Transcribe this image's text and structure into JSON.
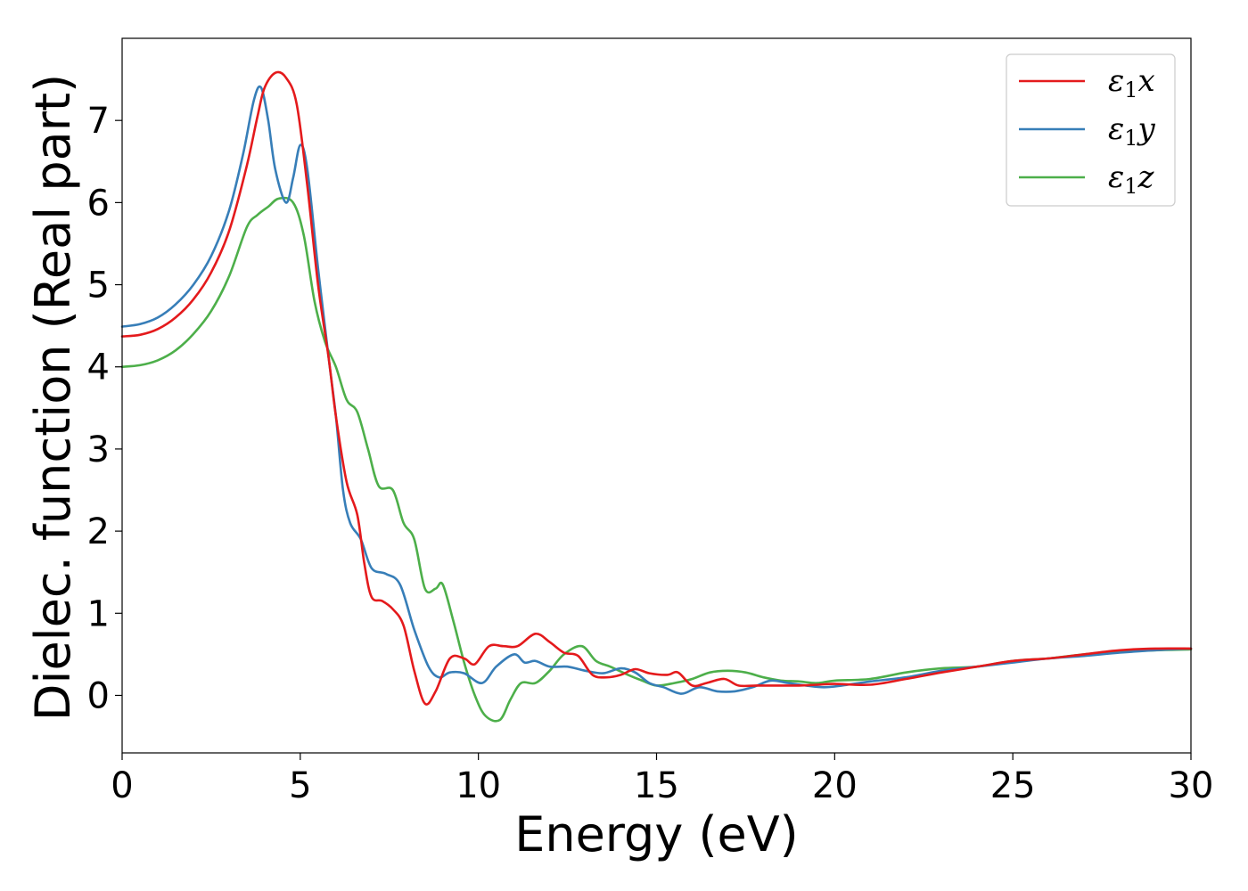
{
  "chart_data": {
    "type": "line",
    "title": "",
    "xlabel": "Energy (eV)",
    "ylabel": "Dielec. function (Real part)",
    "xlim": [
      0,
      30
    ],
    "ylim": [
      -0.7,
      8.0
    ],
    "xticks": [
      0,
      5,
      10,
      15,
      20,
      25,
      30
    ],
    "yticks": [
      0,
      1,
      2,
      3,
      4,
      5,
      6,
      7
    ],
    "grid": false,
    "legend_position": "top-right",
    "series": [
      {
        "name": "ε1x",
        "legend": {
          "base": "ε",
          "sub": "1",
          "var": "x"
        },
        "color": "#e41a1c",
        "points": [
          [
            0,
            4.37
          ],
          [
            0.5,
            4.39
          ],
          [
            1,
            4.46
          ],
          [
            1.5,
            4.6
          ],
          [
            2,
            4.82
          ],
          [
            2.5,
            5.15
          ],
          [
            3,
            5.65
          ],
          [
            3.5,
            6.45
          ],
          [
            3.8,
            7.05
          ],
          [
            4.0,
            7.4
          ],
          [
            4.3,
            7.58
          ],
          [
            4.6,
            7.52
          ],
          [
            4.9,
            7.2
          ],
          [
            5.2,
            6.2
          ],
          [
            5.5,
            5.0
          ],
          [
            5.8,
            4.1
          ],
          [
            6.0,
            3.4
          ],
          [
            6.3,
            2.6
          ],
          [
            6.6,
            2.2
          ],
          [
            6.8,
            1.6
          ],
          [
            7.0,
            1.2
          ],
          [
            7.3,
            1.15
          ],
          [
            7.6,
            1.05
          ],
          [
            7.9,
            0.85
          ],
          [
            8.2,
            0.3
          ],
          [
            8.5,
            -0.1
          ],
          [
            8.8,
            0.05
          ],
          [
            9.2,
            0.45
          ],
          [
            9.6,
            0.45
          ],
          [
            9.9,
            0.38
          ],
          [
            10.3,
            0.6
          ],
          [
            10.7,
            0.6
          ],
          [
            11.1,
            0.6
          ],
          [
            11.6,
            0.75
          ],
          [
            12.0,
            0.65
          ],
          [
            12.4,
            0.52
          ],
          [
            12.8,
            0.48
          ],
          [
            13.2,
            0.25
          ],
          [
            13.6,
            0.22
          ],
          [
            14.0,
            0.25
          ],
          [
            14.4,
            0.32
          ],
          [
            14.8,
            0.27
          ],
          [
            15.3,
            0.25
          ],
          [
            15.6,
            0.28
          ],
          [
            16.0,
            0.12
          ],
          [
            16.4,
            0.15
          ],
          [
            16.9,
            0.2
          ],
          [
            17.3,
            0.12
          ],
          [
            17.8,
            0.12
          ],
          [
            18.3,
            0.12
          ],
          [
            19.0,
            0.12
          ],
          [
            19.5,
            0.13
          ],
          [
            20.0,
            0.14
          ],
          [
            21.0,
            0.13
          ],
          [
            22.0,
            0.2
          ],
          [
            23.0,
            0.28
          ],
          [
            24.0,
            0.35
          ],
          [
            25.0,
            0.42
          ],
          [
            26.0,
            0.45
          ],
          [
            27.0,
            0.5
          ],
          [
            28.0,
            0.55
          ],
          [
            29.0,
            0.57
          ],
          [
            30.0,
            0.57
          ]
        ]
      },
      {
        "name": "ε1y",
        "legend": {
          "base": "ε",
          "sub": "1",
          "var": "y"
        },
        "color": "#377eb8",
        "points": [
          [
            0,
            4.49
          ],
          [
            0.5,
            4.52
          ],
          [
            1,
            4.6
          ],
          [
            1.5,
            4.76
          ],
          [
            2,
            5.0
          ],
          [
            2.5,
            5.35
          ],
          [
            3,
            5.9
          ],
          [
            3.4,
            6.6
          ],
          [
            3.7,
            7.25
          ],
          [
            3.9,
            7.4
          ],
          [
            4.1,
            7.0
          ],
          [
            4.3,
            6.4
          ],
          [
            4.6,
            6.0
          ],
          [
            4.8,
            6.3
          ],
          [
            5.0,
            6.7
          ],
          [
            5.2,
            6.4
          ],
          [
            5.5,
            5.2
          ],
          [
            5.8,
            4.1
          ],
          [
            6.0,
            3.4
          ],
          [
            6.2,
            2.5
          ],
          [
            6.4,
            2.1
          ],
          [
            6.7,
            1.9
          ],
          [
            7.0,
            1.55
          ],
          [
            7.4,
            1.48
          ],
          [
            7.8,
            1.35
          ],
          [
            8.2,
            0.8
          ],
          [
            8.6,
            0.35
          ],
          [
            8.9,
            0.22
          ],
          [
            9.2,
            0.28
          ],
          [
            9.6,
            0.27
          ],
          [
            10.1,
            0.15
          ],
          [
            10.5,
            0.35
          ],
          [
            11.0,
            0.5
          ],
          [
            11.3,
            0.4
          ],
          [
            11.6,
            0.42
          ],
          [
            12.0,
            0.35
          ],
          [
            12.5,
            0.35
          ],
          [
            13.0,
            0.3
          ],
          [
            13.5,
            0.27
          ],
          [
            14.0,
            0.33
          ],
          [
            14.4,
            0.28
          ],
          [
            14.8,
            0.15
          ],
          [
            15.2,
            0.1
          ],
          [
            15.7,
            0.02
          ],
          [
            16.2,
            0.1
          ],
          [
            16.7,
            0.05
          ],
          [
            17.2,
            0.05
          ],
          [
            17.7,
            0.1
          ],
          [
            18.2,
            0.18
          ],
          [
            18.7,
            0.15
          ],
          [
            19.2,
            0.12
          ],
          [
            19.7,
            0.1
          ],
          [
            20.2,
            0.12
          ],
          [
            21.0,
            0.17
          ],
          [
            22.0,
            0.22
          ],
          [
            23.0,
            0.3
          ],
          [
            24.0,
            0.35
          ],
          [
            25.0,
            0.4
          ],
          [
            26.0,
            0.45
          ],
          [
            27.0,
            0.48
          ],
          [
            28.0,
            0.52
          ],
          [
            29.0,
            0.55
          ],
          [
            30.0,
            0.57
          ]
        ]
      },
      {
        "name": "ε1z",
        "legend": {
          "base": "ε",
          "sub": "1",
          "var": "z"
        },
        "color": "#4daf4a",
        "points": [
          [
            0,
            4.0
          ],
          [
            0.5,
            4.02
          ],
          [
            1,
            4.08
          ],
          [
            1.5,
            4.2
          ],
          [
            2,
            4.4
          ],
          [
            2.5,
            4.68
          ],
          [
            3,
            5.1
          ],
          [
            3.5,
            5.7
          ],
          [
            3.8,
            5.85
          ],
          [
            4.1,
            5.95
          ],
          [
            4.4,
            6.05
          ],
          [
            4.8,
            6.0
          ],
          [
            5.1,
            5.6
          ],
          [
            5.4,
            4.8
          ],
          [
            5.7,
            4.3
          ],
          [
            6.0,
            4.0
          ],
          [
            6.3,
            3.6
          ],
          [
            6.6,
            3.45
          ],
          [
            6.9,
            3.0
          ],
          [
            7.2,
            2.55
          ],
          [
            7.6,
            2.5
          ],
          [
            7.9,
            2.1
          ],
          [
            8.2,
            1.9
          ],
          [
            8.5,
            1.3
          ],
          [
            8.8,
            1.3
          ],
          [
            9.0,
            1.35
          ],
          [
            9.3,
            0.9
          ],
          [
            9.6,
            0.4
          ],
          [
            9.9,
            0.0
          ],
          [
            10.2,
            -0.25
          ],
          [
            10.6,
            -0.3
          ],
          [
            10.9,
            -0.05
          ],
          [
            11.2,
            0.15
          ],
          [
            11.6,
            0.15
          ],
          [
            12.0,
            0.3
          ],
          [
            12.4,
            0.5
          ],
          [
            12.9,
            0.6
          ],
          [
            13.3,
            0.42
          ],
          [
            13.7,
            0.35
          ],
          [
            14.2,
            0.25
          ],
          [
            14.6,
            0.18
          ],
          [
            15.0,
            0.12
          ],
          [
            15.5,
            0.15
          ],
          [
            16.0,
            0.2
          ],
          [
            16.5,
            0.28
          ],
          [
            17.0,
            0.3
          ],
          [
            17.5,
            0.28
          ],
          [
            18.0,
            0.22
          ],
          [
            18.5,
            0.18
          ],
          [
            19.0,
            0.17
          ],
          [
            19.5,
            0.15
          ],
          [
            20.0,
            0.18
          ],
          [
            21.0,
            0.2
          ],
          [
            22.0,
            0.28
          ],
          [
            23.0,
            0.33
          ],
          [
            24.0,
            0.35
          ],
          [
            25.0,
            0.42
          ],
          [
            26.0,
            0.45
          ],
          [
            27.0,
            0.5
          ],
          [
            28.0,
            0.53
          ],
          [
            29.0,
            0.55
          ],
          [
            30.0,
            0.56
          ]
        ]
      }
    ]
  }
}
